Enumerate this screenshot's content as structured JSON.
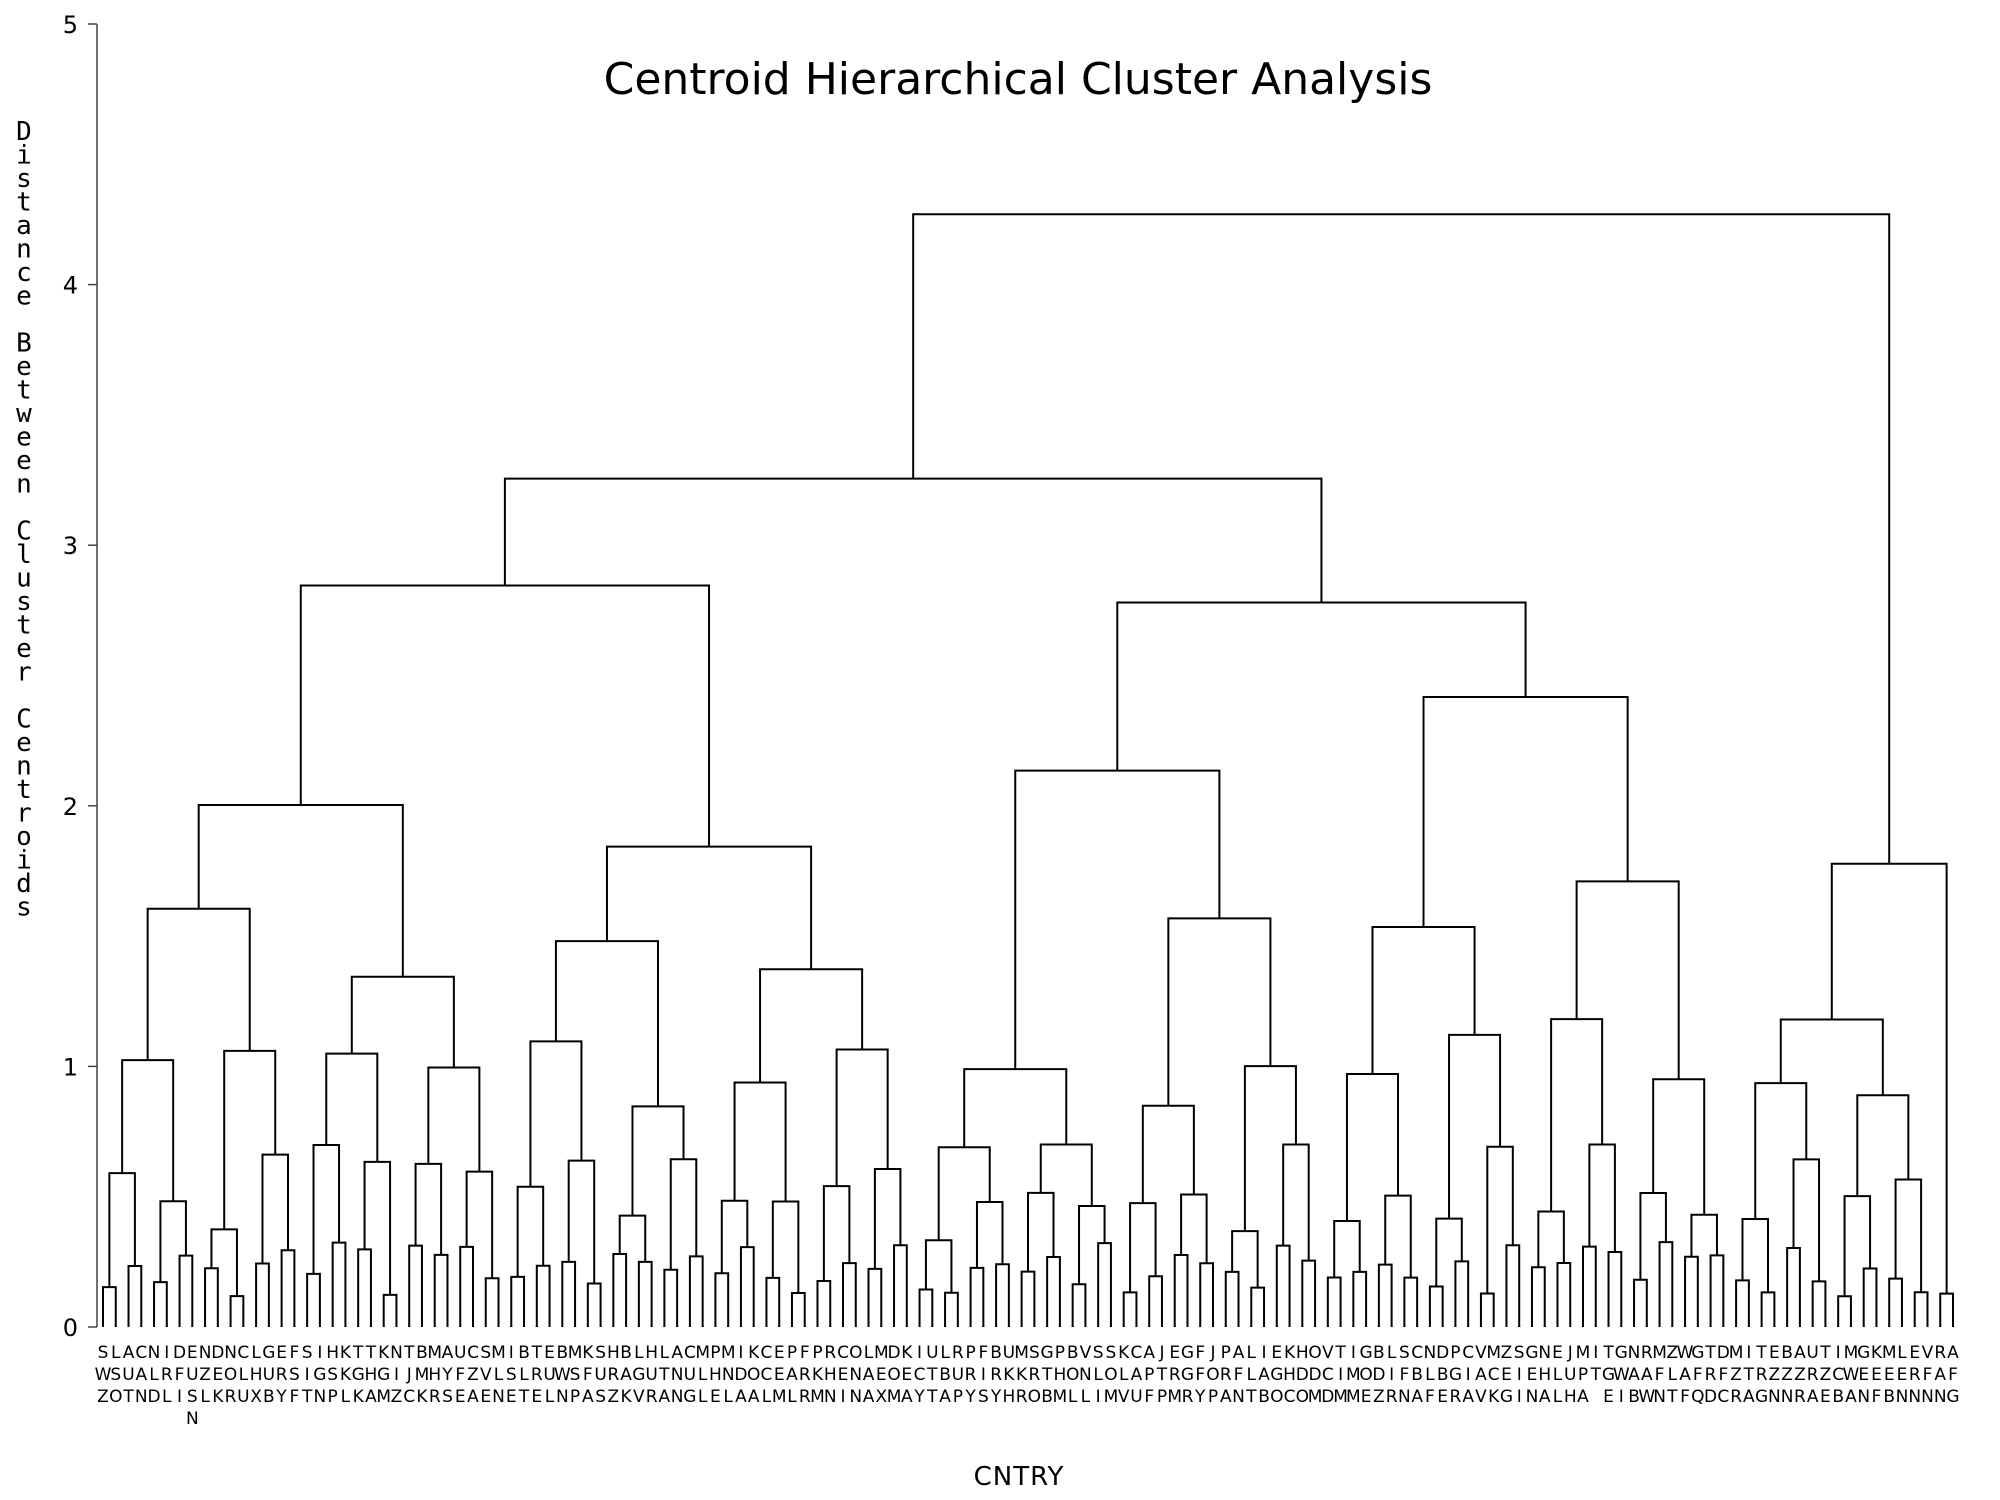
{
  "chart_data": {
    "type": "dendrogram",
    "title": "Centroid Hierarchical Cluster Analysis",
    "xlabel": "CNTRY",
    "ylabel": "Distance Between Cluster Centroids",
    "ylim": [
      0,
      5
    ],
    "yticks": [
      0,
      1,
      2,
      3,
      4,
      5
    ],
    "leaves": [
      "SWZ",
      "LSO",
      "AUT",
      "CAN",
      "NLD",
      "IRL",
      "DFI",
      "EUSN",
      "NZL",
      "DEK",
      "NOR",
      "CLU",
      "LHX",
      "GUB",
      "ERY",
      "FSF",
      "SIT",
      "IGN",
      "HSP",
      "KKL",
      "TGK",
      "THA",
      "KGM",
      "NIZ",
      "TJC",
      "BMK",
      "MHR",
      "AYS",
      "UFE",
      "CZA",
      "SVE",
      "MLN",
      "ISE",
      "BLT",
      "TRE",
      "EUL",
      "BWN",
      "MSP",
      "KFA",
      "SUS",
      "HRZ",
      "BAK",
      "LGV",
      "HUR",
      "LTA",
      "ANN",
      "CUG",
      "MLL",
      "PHE",
      "MNL",
      "IDA",
      "KOA",
      "CCL",
      "EEM",
      "PAL",
      "FRR",
      "PKM",
      "RHN",
      "CEI",
      "ONN",
      "LAA",
      "MEX",
      "DOM",
      "KEA",
      "ICY",
      "UTT",
      "LBA",
      "RUP",
      "PRY",
      "FIS",
      "BRY",
      "UKH",
      "MKR",
      "SRO",
      "GTB",
      "PHM",
      "BOL",
      "VNL",
      "SLI",
      "SOM",
      "KLV",
      "CAU",
      "APF",
      "JTP",
      "ERM",
      "GGR",
      "FFY",
      "JOP",
      "PRA",
      "AFN",
      "LLT",
      "IAB",
      "EGO",
      "KHC",
      "HDO",
      "ODM",
      "VCD",
      "TIM",
      "IMM",
      "GOE",
      "BDZ",
      "LIR",
      "SFN",
      "CBA",
      "NLF",
      "DBE",
      "PGR",
      "CIA",
      "VAV",
      "MCK",
      "ZEG",
      "SII",
      "GEN",
      "NHA",
      "ELL",
      "JUH",
      "MPA",
      "IT",
      "TGE",
      "GWI",
      "NAB",
      "RAW",
      "MFN",
      "ZLT",
      "WAF",
      "GFQ",
      "TRD",
      "DFC",
      "MZR",
      "ITA",
      "TRG",
      "EZN",
      "BZN",
      "AZR",
      "URA",
      "TZE",
      "ICB",
      "MWA",
      "GEN",
      "KEF",
      "MEB",
      "LEN",
      "ERN",
      "VFN",
      "RAN",
      "AFG"
    ]
  }
}
